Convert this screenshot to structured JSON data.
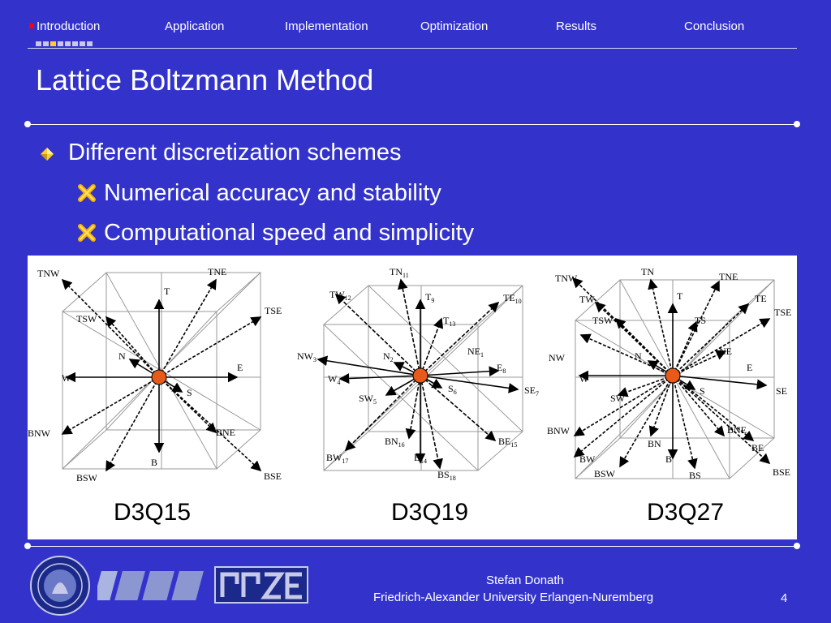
{
  "nav": {
    "items": [
      "Introduction",
      "Application",
      "Implementation",
      "Optimization",
      "Results",
      "Conclusion"
    ],
    "active": "Introduction",
    "progress": {
      "current": 3,
      "total": 8
    }
  },
  "slide": {
    "title": "Lattice Boltzmann Method",
    "bullets": {
      "main": "Different discretization schemes",
      "sub": [
        "Numerical accuracy and stability",
        "Computational speed and simplicity"
      ]
    }
  },
  "figure": {
    "captions": [
      "D3Q15",
      "D3Q19",
      "D3Q27"
    ],
    "d3q15_labels": [
      "TNW",
      "TNE",
      "T",
      "TSE",
      "TSW",
      "N",
      "W",
      "E",
      "S",
      "BNW",
      "BNE",
      "B",
      "BSW",
      "BSE",
      "C"
    ],
    "d3q19_labels": [
      "TN",
      "TW",
      "T",
      "TE",
      "T",
      "NW",
      "N",
      "NE",
      "W",
      "E",
      "SW",
      "S",
      "SE",
      "BN",
      "BE",
      "BW",
      "B",
      "BS",
      "C"
    ],
    "d3q19_subscripts": [
      "11",
      "12",
      "9",
      "10",
      "13",
      "3",
      "2",
      "1",
      "4",
      "8",
      "5",
      "6",
      "7",
      "16",
      "15",
      "17",
      "14",
      "18"
    ],
    "d3q27_labels": [
      "TNW",
      "TN",
      "TNE",
      "TW",
      "T",
      "TE",
      "TSW",
      "TS",
      "TSE",
      "NW",
      "N",
      "NE",
      "W",
      "E",
      "SW",
      "S",
      "SE",
      "BNW",
      "BNE",
      "BN",
      "BE",
      "BW",
      "B",
      "BSW",
      "BS",
      "BSE",
      "C"
    ]
  },
  "footer": {
    "author": "Stefan Donath",
    "university": "Friedrich-Alexander University Erlangen-Nuremberg",
    "page": "4",
    "logos": [
      "university-seal",
      "LSS logo",
      "RRZE logo"
    ]
  },
  "colors": {
    "background": "#3333cc",
    "accent": "#ffcc33",
    "active_marker": "#ff0000"
  }
}
